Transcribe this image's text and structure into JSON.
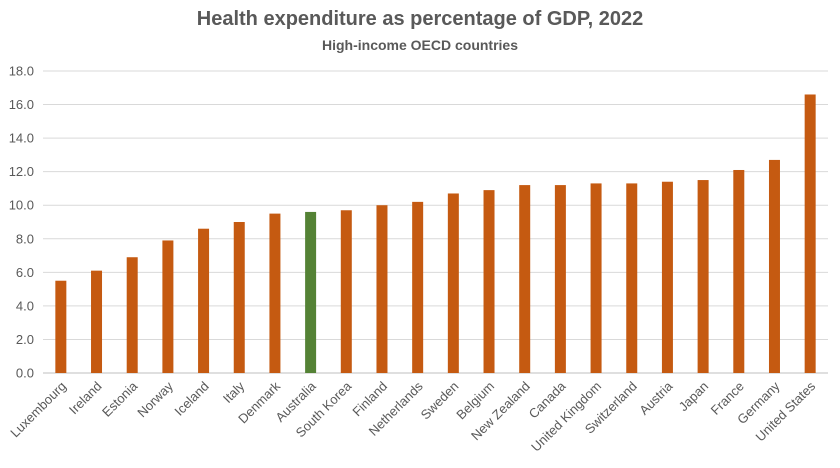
{
  "chart_data": {
    "type": "bar",
    "title": "Health expenditure as percentage of GDP, 2022",
    "subtitle": "High-income OECD countries",
    "xlabel": "",
    "ylabel": "",
    "ylim": [
      0,
      18
    ],
    "yticks": [
      "0.0",
      "2.0",
      "4.0",
      "6.0",
      "8.0",
      "10.0",
      "12.0",
      "14.0",
      "16.0",
      "18.0"
    ],
    "grid": true,
    "categories": [
      "Luxembourg",
      "Ireland",
      "Estonia",
      "Norway",
      "Iceland",
      "Italy",
      "Denmark",
      "Australia",
      "South Korea",
      "Finland",
      "Netherlands",
      "Sweden",
      "Belgium",
      "New Zealand",
      "Canada",
      "United Kingdom",
      "Switzerland",
      "Austria",
      "Japan",
      "France",
      "Germany",
      "United States"
    ],
    "values": [
      5.5,
      6.1,
      6.9,
      7.9,
      8.6,
      9.0,
      9.5,
      9.6,
      9.7,
      10.0,
      10.2,
      10.7,
      10.9,
      11.2,
      11.2,
      11.3,
      11.3,
      11.4,
      11.5,
      12.1,
      12.7,
      16.6
    ],
    "highlight": "Australia",
    "colors": {
      "bar": "#C55A11",
      "highlight": "#548235",
      "grid": "#D9D9D9",
      "text": "#595959"
    }
  }
}
